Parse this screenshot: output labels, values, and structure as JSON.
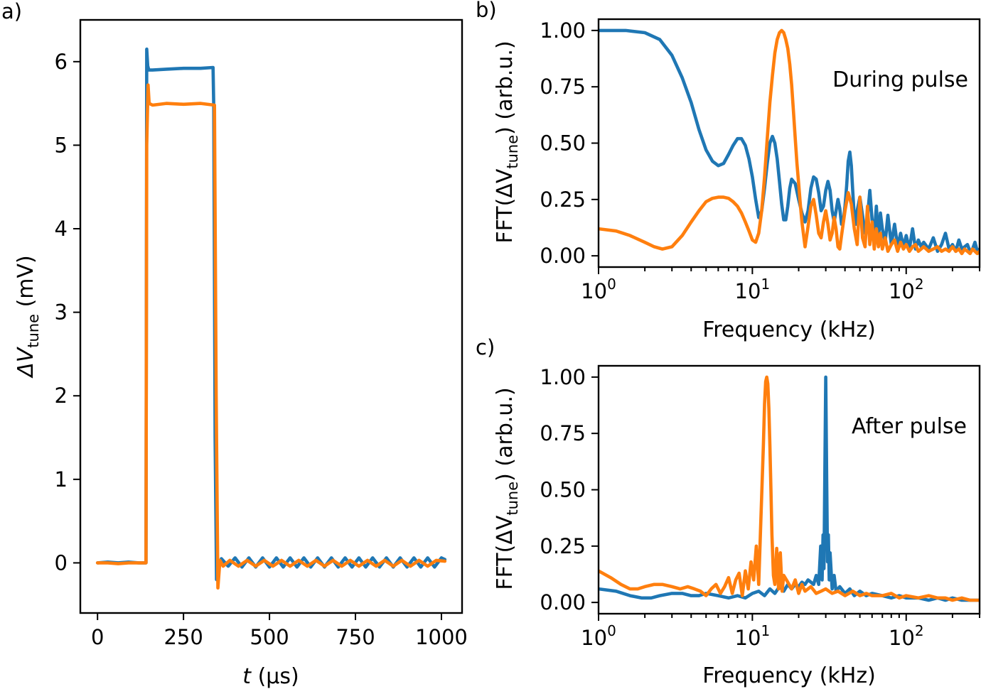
{
  "chart_data": [
    {
      "panel_label": "a)",
      "type": "line",
      "xlabel_italic": "t",
      "xlabel_rest": " (µs)",
      "ylabel_prefix": "ΔV",
      "ylabel_sub": "tune",
      "ylabel_suffix": " (mV)",
      "xlim": [
        -50,
        1060
      ],
      "ylim": [
        -0.6,
        6.5
      ],
      "xticks": [
        0,
        250,
        500,
        750,
        1000
      ],
      "xtick_labels": [
        "0",
        "250",
        "500",
        "750",
        "1000"
      ],
      "yticks": [
        0,
        1,
        2,
        3,
        4,
        5,
        6
      ],
      "ytick_labels": [
        "0",
        "1",
        "2",
        "3",
        "4",
        "5",
        "6"
      ],
      "series": [
        {
          "color": "#1f77b4",
          "x": [
            0,
            30,
            60,
            90,
            120,
            141,
            143,
            146,
            149,
            160,
            200,
            250,
            300,
            336,
            338,
            342,
            346,
            352,
            360,
            380,
            400,
            420,
            440,
            460,
            480,
            500,
            520,
            540,
            560,
            580,
            600,
            620,
            640,
            660,
            680,
            700,
            720,
            740,
            760,
            780,
            800,
            820,
            840,
            860,
            880,
            900,
            920,
            940,
            960,
            980,
            1000,
            1010
          ],
          "y": [
            0.0,
            0.01,
            0.0,
            0.01,
            0.0,
            0.0,
            6.15,
            5.95,
            5.9,
            5.9,
            5.91,
            5.92,
            5.92,
            5.93,
            5.45,
            1.5,
            -0.2,
            -0.05,
            0.05,
            -0.04,
            0.06,
            -0.05,
            0.06,
            -0.05,
            0.06,
            -0.05,
            0.06,
            -0.05,
            0.06,
            -0.05,
            0.06,
            -0.05,
            0.06,
            -0.05,
            0.06,
            -0.05,
            0.06,
            -0.05,
            0.06,
            -0.05,
            0.06,
            -0.05,
            0.06,
            -0.05,
            0.06,
            -0.05,
            0.06,
            -0.05,
            0.06,
            -0.05,
            0.06,
            0.04
          ]
        },
        {
          "color": "#ff7f0e",
          "x": [
            0,
            30,
            60,
            90,
            120,
            141,
            143,
            147,
            150,
            160,
            200,
            250,
            300,
            340,
            345,
            350,
            356,
            365,
            385,
            410,
            435,
            460,
            485,
            510,
            535,
            560,
            585,
            610,
            635,
            660,
            685,
            710,
            735,
            760,
            785,
            810,
            835,
            860,
            885,
            910,
            935,
            960,
            985,
            1010
          ],
          "y": [
            0.0,
            0.0,
            -0.01,
            0.0,
            0.0,
            0.0,
            5.0,
            5.72,
            5.5,
            5.48,
            5.5,
            5.49,
            5.5,
            5.48,
            2.0,
            -0.3,
            0.03,
            -0.04,
            0.03,
            -0.04,
            0.03,
            -0.04,
            0.03,
            -0.04,
            0.03,
            -0.04,
            0.03,
            -0.04,
            0.03,
            -0.04,
            0.03,
            -0.04,
            0.03,
            -0.04,
            0.03,
            -0.04,
            0.03,
            -0.04,
            0.03,
            -0.04,
            0.03,
            -0.04,
            0.03,
            0.02
          ]
        }
      ]
    },
    {
      "panel_label": "b)",
      "type": "line",
      "annotation": "During pulse",
      "xlabel": "Frequency (kHz)",
      "ylabel_prefix": "FFT(ΔV",
      "ylabel_sub": "tune",
      "ylabel_suffix": ") (arb.u.)",
      "xscale": "log",
      "xlim": [
        1,
        300
      ],
      "ylim": [
        -0.05,
        1.05
      ],
      "xticks": [
        1,
        10,
        100
      ],
      "xtick_base": "10",
      "xtick_exponents": [
        "0",
        "1",
        "2"
      ],
      "yticks": [
        0,
        0.25,
        0.5,
        0.75,
        1.0
      ],
      "ytick_labels": [
        "0.00",
        "0.25",
        "0.50",
        "0.75",
        "1.00"
      ],
      "series": [
        {
          "color": "#1f77b4",
          "x": [
            1.0,
            1.5,
            2.0,
            2.5,
            3.0,
            3.5,
            4.0,
            4.5,
            5.0,
            5.5,
            6.0,
            6.5,
            7.0,
            7.5,
            8.0,
            8.5,
            9.0,
            9.5,
            10.0,
            10.5,
            11.0,
            11.5,
            12.0,
            12.5,
            13.0,
            13.5,
            14.0,
            14.5,
            15.0,
            15.5,
            16.0,
            16.5,
            17.0,
            17.5,
            18.0,
            19.0,
            20.0,
            21.0,
            22.0,
            23.0,
            24.0,
            25.0,
            26.0,
            27.0,
            28.0,
            29.0,
            30.0,
            31.0,
            32.0,
            33.0,
            34.0,
            35.0,
            36.0,
            37.0,
            38.0,
            39.0,
            40.0,
            41.0,
            42.0,
            43.0,
            44.0,
            45.0,
            46.0,
            47.0,
            48.0,
            50.0,
            52.0,
            54.0,
            56.0,
            58.0,
            60.0,
            62.0,
            64.0,
            66.0,
            68.0,
            70.0,
            73.0,
            76.0,
            80.0,
            84.0,
            88.0,
            92.0,
            96.0,
            100.0,
            105.0,
            110.0,
            115.0,
            120.0,
            125.0,
            130.0,
            140.0,
            150.0,
            160.0,
            170.0,
            180.0,
            190.0,
            200.0,
            210.0,
            220.0,
            230.0,
            240.0,
            250.0,
            260.0,
            270.0,
            280.0,
            290.0,
            300.0
          ],
          "y": [
            1.0,
            1.0,
            0.99,
            0.96,
            0.89,
            0.79,
            0.68,
            0.56,
            0.47,
            0.42,
            0.4,
            0.41,
            0.45,
            0.49,
            0.52,
            0.52,
            0.49,
            0.43,
            0.35,
            0.25,
            0.17,
            0.2,
            0.3,
            0.41,
            0.5,
            0.53,
            0.5,
            0.43,
            0.33,
            0.23,
            0.16,
            0.16,
            0.22,
            0.3,
            0.34,
            0.32,
            0.25,
            0.19,
            0.15,
            0.2,
            0.3,
            0.35,
            0.34,
            0.28,
            0.2,
            0.22,
            0.29,
            0.33,
            0.29,
            0.2,
            0.15,
            0.2,
            0.25,
            0.21,
            0.14,
            0.15,
            0.22,
            0.31,
            0.42,
            0.46,
            0.4,
            0.28,
            0.17,
            0.14,
            0.2,
            0.26,
            0.18,
            0.1,
            0.17,
            0.29,
            0.16,
            0.09,
            0.22,
            0.07,
            0.19,
            0.12,
            0.06,
            0.18,
            0.05,
            0.14,
            0.04,
            0.1,
            0.04,
            0.09,
            0.03,
            0.12,
            0.03,
            0.07,
            0.04,
            0.06,
            0.03,
            0.08,
            0.02,
            0.05,
            0.1,
            0.03,
            0.05,
            0.02,
            0.07,
            0.03,
            0.04,
            0.05,
            0.02,
            0.03,
            0.06,
            0.02,
            0.03
          ]
        },
        {
          "color": "#ff7f0e",
          "x": [
            1.0,
            1.3,
            1.6,
            2.0,
            2.3,
            2.6,
            3.0,
            3.5,
            4.0,
            4.5,
            5.0,
            5.5,
            6.0,
            6.5,
            7.0,
            7.5,
            8.0,
            8.5,
            9.0,
            9.5,
            10.0,
            10.5,
            11.0,
            11.5,
            12.0,
            12.5,
            13.0,
            13.5,
            14.0,
            14.5,
            15.0,
            15.5,
            16.0,
            16.5,
            17.0,
            17.5,
            18.0,
            18.5,
            19.0,
            19.5,
            20.0,
            20.5,
            21.0,
            22.0,
            23.0,
            24.0,
            25.0,
            26.0,
            27.0,
            28.0,
            29.0,
            30.0,
            31.0,
            32.0,
            33.0,
            34.0,
            35.0,
            36.0,
            37.0,
            38.0,
            40.0,
            42.0,
            44.0,
            46.0,
            48.0,
            50.0,
            52.0,
            54.0,
            56.0,
            58.0,
            60.0,
            62.0,
            64.0,
            66.0,
            68.0,
            70.0,
            73.0,
            76.0,
            80.0,
            84.0,
            88.0,
            92.0,
            96.0,
            100.0,
            105.0,
            110.0,
            115.0,
            120.0,
            125.0,
            130.0,
            140.0,
            150.0,
            160.0,
            170.0,
            180.0,
            190.0,
            200.0,
            210.0,
            220.0,
            230.0,
            240.0,
            250.0,
            260.0,
            270.0,
            280.0,
            290.0,
            300.0
          ],
          "y": [
            0.12,
            0.11,
            0.09,
            0.06,
            0.04,
            0.03,
            0.04,
            0.09,
            0.15,
            0.2,
            0.24,
            0.255,
            0.26,
            0.26,
            0.255,
            0.24,
            0.22,
            0.19,
            0.15,
            0.11,
            0.07,
            0.06,
            0.1,
            0.2,
            0.35,
            0.52,
            0.68,
            0.8,
            0.9,
            0.96,
            0.99,
            1.0,
            0.99,
            0.96,
            0.92,
            0.85,
            0.76,
            0.64,
            0.52,
            0.41,
            0.32,
            0.23,
            0.15,
            0.04,
            0.13,
            0.22,
            0.25,
            0.18,
            0.1,
            0.08,
            0.15,
            0.2,
            0.14,
            0.07,
            0.1,
            0.17,
            0.12,
            0.04,
            0.03,
            0.09,
            0.2,
            0.28,
            0.23,
            0.12,
            0.05,
            0.26,
            0.08,
            0.04,
            0.22,
            0.05,
            0.15,
            0.03,
            0.12,
            0.04,
            0.1,
            0.03,
            0.08,
            0.02,
            0.05,
            0.07,
            0.02,
            0.06,
            0.03,
            0.05,
            0.02,
            0.04,
            0.05,
            0.02,
            0.03,
            0.04,
            0.02,
            0.03,
            0.04,
            0.02,
            0.03,
            0.02,
            0.04,
            0.02,
            0.03,
            0.01,
            0.03,
            0.02,
            0.01,
            0.03,
            0.02,
            0.01,
            0.02
          ]
        }
      ]
    },
    {
      "panel_label": "c)",
      "type": "line",
      "annotation": "After pulse",
      "xlabel": "Frequency (kHz)",
      "ylabel_prefix": "FFT(ΔV",
      "ylabel_sub": "tune",
      "ylabel_suffix": ") (arb.u.)",
      "xscale": "log",
      "xlim": [
        1,
        300
      ],
      "ylim": [
        -0.05,
        1.05
      ],
      "xticks": [
        1,
        10,
        100
      ],
      "xtick_base": "10",
      "xtick_exponents": [
        "0",
        "1",
        "2"
      ],
      "yticks": [
        0,
        0.25,
        0.5,
        0.75,
        1.0
      ],
      "ytick_labels": [
        "0.00",
        "0.25",
        "0.50",
        "0.75",
        "1.00"
      ],
      "series": [
        {
          "color": "#1f77b4",
          "x": [
            1.0,
            1.3,
            1.6,
            1.9,
            2.2,
            2.5,
            3.0,
            3.5,
            4.0,
            4.5,
            5.0,
            6.0,
            7.0,
            8.0,
            9.0,
            10.0,
            11.0,
            12.0,
            13.0,
            14.0,
            15.0,
            16.0,
            17.0,
            18.0,
            19.0,
            20.0,
            21.0,
            22.0,
            23.0,
            24.0,
            25.0,
            26.0,
            27.0,
            27.8,
            28.4,
            28.8,
            29.2,
            29.6,
            30.0,
            30.4,
            30.8,
            31.2,
            31.6,
            32.0,
            33.0,
            34.0,
            35.0,
            37.0,
            40.0,
            43.0,
            46.0,
            50.0,
            55.0,
            60.0,
            70.0,
            80.0,
            90.0,
            100.0,
            120.0,
            140.0,
            160.0,
            180.0,
            200.0,
            230.0,
            260.0,
            300.0
          ],
          "y": [
            0.06,
            0.05,
            0.03,
            0.02,
            0.02,
            0.03,
            0.04,
            0.04,
            0.03,
            0.03,
            0.04,
            0.03,
            0.02,
            0.03,
            0.02,
            0.04,
            0.05,
            0.03,
            0.06,
            0.04,
            0.07,
            0.05,
            0.08,
            0.06,
            0.08,
            0.07,
            0.09,
            0.08,
            0.1,
            0.09,
            0.08,
            0.12,
            0.08,
            0.25,
            0.1,
            0.3,
            0.15,
            0.6,
            1.0,
            0.55,
            0.18,
            0.3,
            0.1,
            0.22,
            0.06,
            0.12,
            0.05,
            0.07,
            0.04,
            0.06,
            0.03,
            0.05,
            0.03,
            0.04,
            0.03,
            0.02,
            0.03,
            0.02,
            0.02,
            0.01,
            0.02,
            0.01,
            0.02,
            0.01,
            0.01,
            0.01
          ]
        },
        {
          "color": "#ff7f0e",
          "x": [
            1.0,
            1.2,
            1.4,
            1.6,
            1.8,
            2.0,
            2.3,
            2.6,
            3.0,
            3.4,
            3.8,
            4.2,
            4.6,
            5.0,
            5.4,
            5.8,
            6.2,
            6.6,
            7.0,
            7.4,
            7.8,
            8.2,
            8.6,
            9.0,
            9.4,
            9.8,
            10.2,
            10.6,
            11.0,
            11.4,
            11.8,
            12.0,
            12.2,
            12.4,
            12.6,
            12.8,
            13.0,
            13.2,
            13.4,
            13.7,
            14.0,
            14.4,
            14.8,
            15.2,
            15.6,
            16.0,
            17.0,
            18.0,
            19.0,
            20.0,
            21.0,
            22.0,
            24.0,
            26.0,
            28.0,
            30.0,
            33.0,
            36.0,
            40.0,
            45.0,
            50.0,
            55.0,
            60.0,
            70.0,
            80.0,
            90.0,
            100.0,
            120.0,
            140.0,
            160.0,
            180.0,
            200.0,
            230.0,
            260.0,
            300.0
          ],
          "y": [
            0.14,
            0.11,
            0.08,
            0.06,
            0.06,
            0.07,
            0.08,
            0.08,
            0.07,
            0.06,
            0.07,
            0.06,
            0.05,
            0.03,
            0.06,
            0.08,
            0.04,
            0.07,
            0.11,
            0.04,
            0.1,
            0.13,
            0.03,
            0.14,
            0.06,
            0.18,
            0.1,
            0.25,
            0.08,
            0.4,
            0.7,
            0.88,
            0.98,
            1.0,
            0.97,
            0.86,
            0.7,
            0.5,
            0.3,
            0.12,
            0.08,
            0.24,
            0.06,
            0.22,
            0.05,
            0.12,
            0.09,
            0.06,
            0.1,
            0.04,
            0.08,
            0.05,
            0.07,
            0.04,
            0.05,
            0.06,
            0.04,
            0.05,
            0.03,
            0.05,
            0.03,
            0.04,
            0.03,
            0.03,
            0.04,
            0.02,
            0.03,
            0.02,
            0.03,
            0.02,
            0.02,
            0.01,
            0.02,
            0.01,
            0.01
          ]
        }
      ]
    }
  ]
}
